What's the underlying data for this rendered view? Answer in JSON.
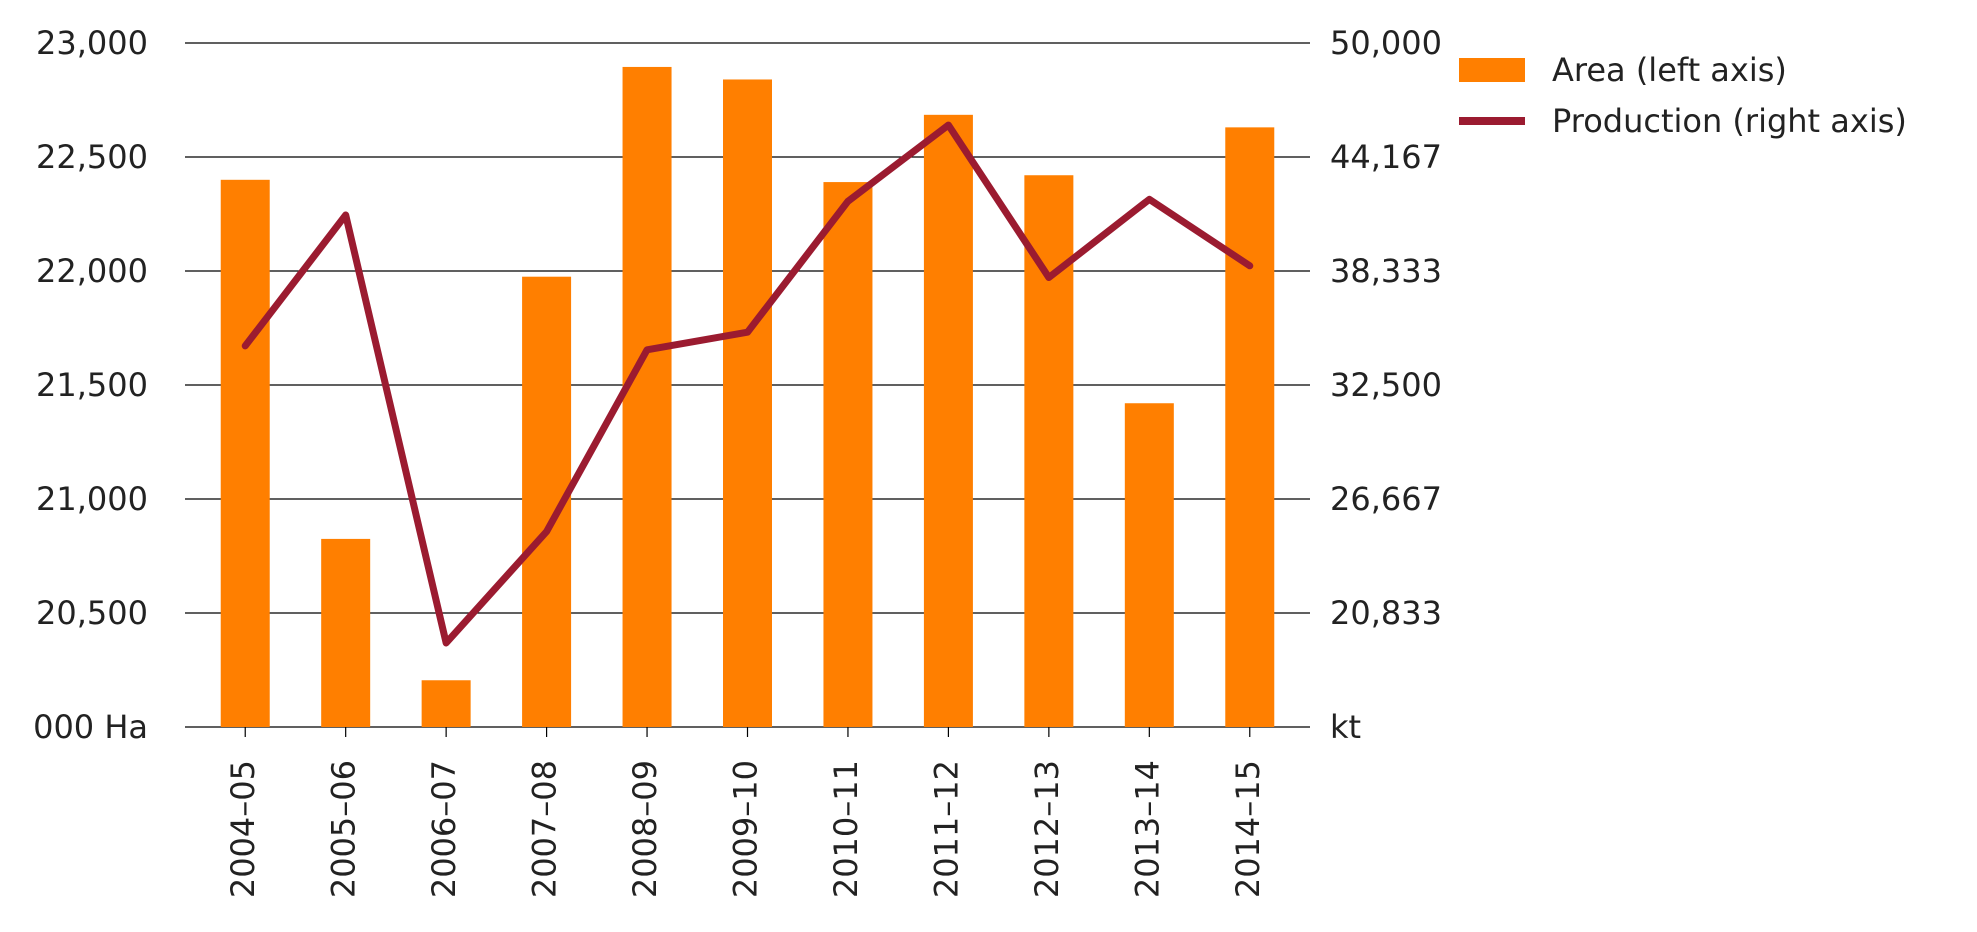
{
  "chart_data": {
    "type": "bar",
    "categories": [
      "2004–05",
      "2005–06",
      "2006–07",
      "2007–08",
      "2008–09",
      "2009–10",
      "2010–11",
      "2011–12",
      "2012–13",
      "2013–14",
      "2014–15"
    ],
    "series": [
      {
        "name": "Area (left axis)",
        "type": "bar",
        "axis": "left",
        "color": "#FF7F00",
        "values": [
          22400,
          20825,
          20205,
          21975,
          22895,
          22840,
          22390,
          22685,
          22420,
          21420,
          22630
        ]
      },
      {
        "name": "Production (right axis)",
        "type": "line",
        "axis": "right",
        "color": "#9B1B30",
        "values": [
          34500,
          41200,
          19300,
          25000,
          34300,
          35200,
          41900,
          45800,
          38000,
          42000,
          38600
        ]
      }
    ],
    "left_axis": {
      "label": "000 Ha",
      "ylim": [
        20000,
        23000
      ],
      "ticks": [
        20000,
        20500,
        21000,
        21500,
        22000,
        22500,
        23000
      ],
      "tick_labels": [
        "000 Ha",
        "20,500",
        "21,000",
        "21,500",
        "22,000",
        "22,500",
        "23,000"
      ]
    },
    "right_axis": {
      "label": "kt",
      "ylim": [
        15000,
        50000
      ],
      "ticks": [
        15000,
        20833,
        26667,
        32500,
        38333,
        44167,
        50000
      ],
      "tick_labels": [
        "kt",
        "20,833",
        "26,667",
        "32,500",
        "38,333",
        "44,167",
        "50,000"
      ]
    },
    "grid": true,
    "legend_position": "top-right",
    "title": "",
    "xlabel": ""
  }
}
